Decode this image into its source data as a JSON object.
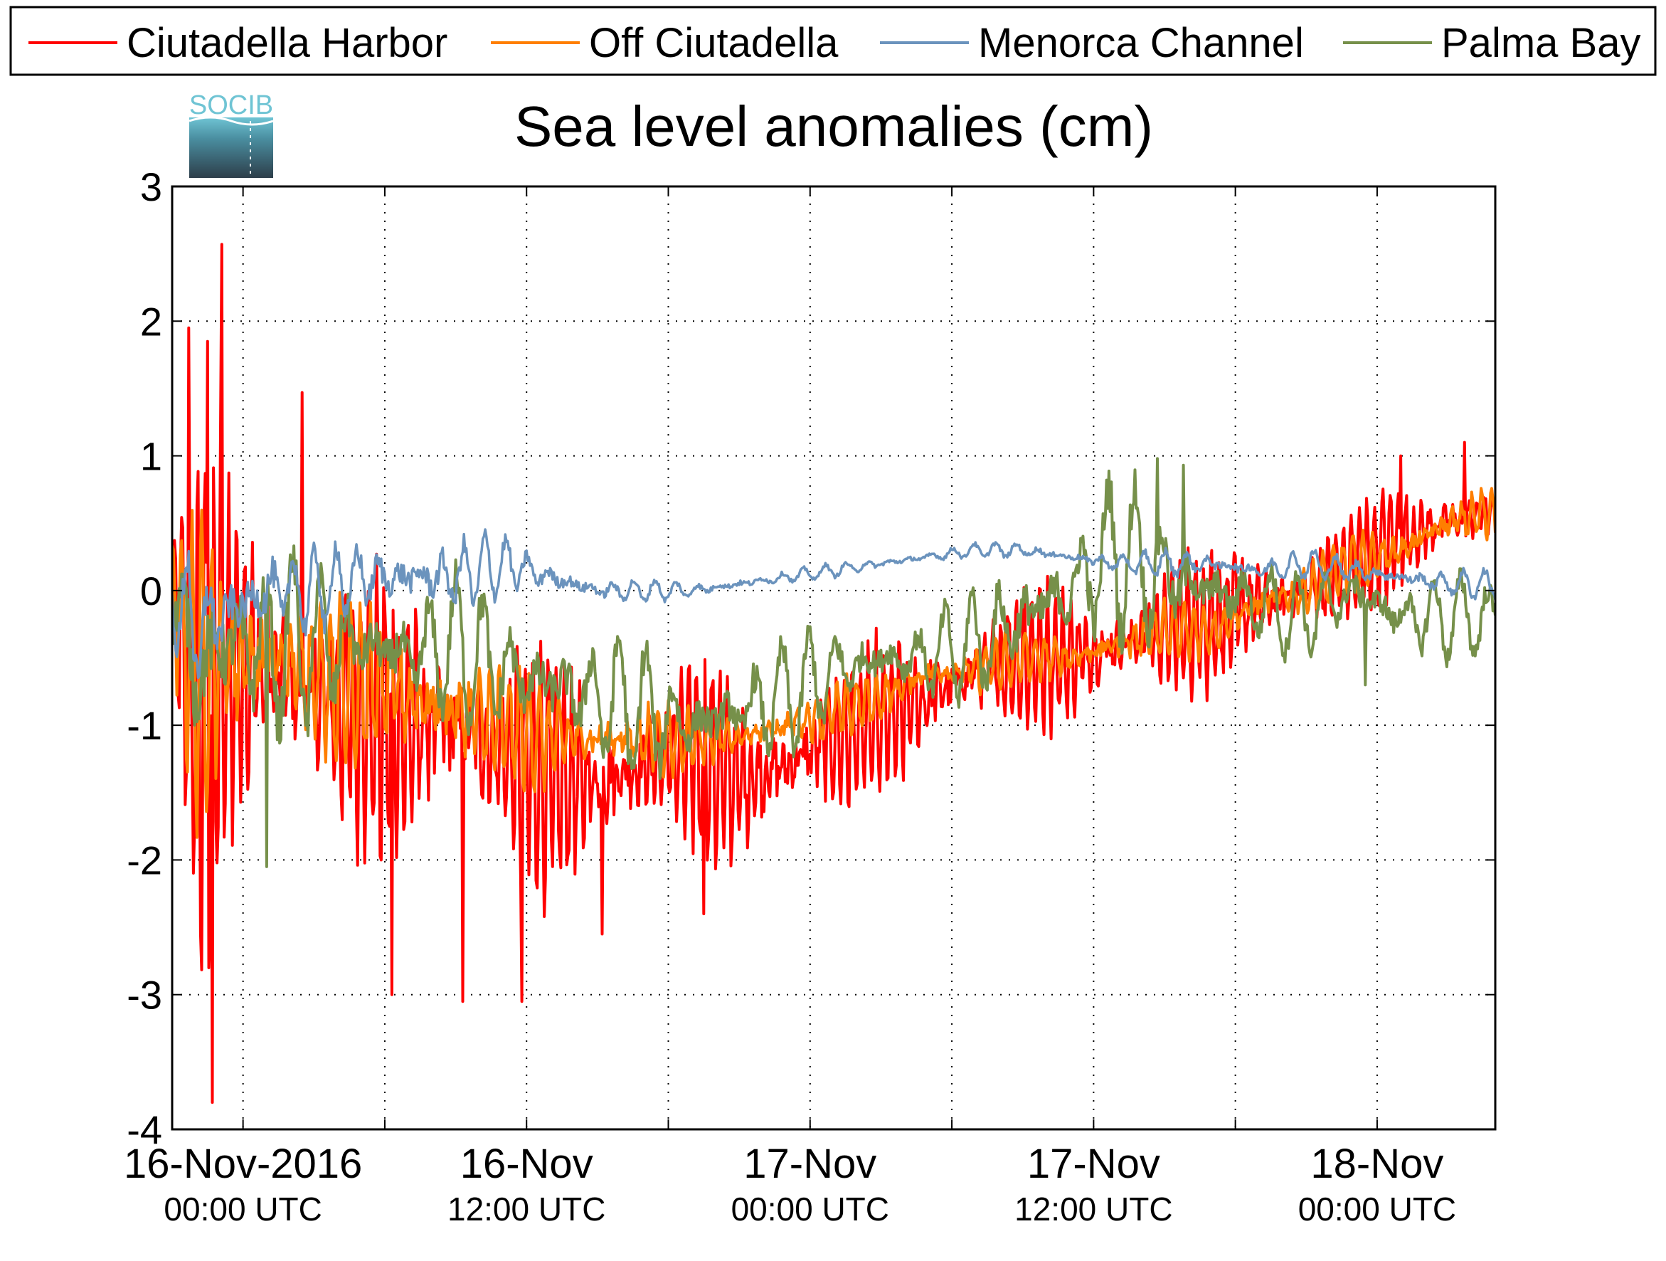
{
  "logo": {
    "text": "SOCIB"
  },
  "colors": {
    "ciutadella_harbor": "#ff0000",
    "off_ciutadella": "#ff7f00",
    "menorca_channel": "#6b93bd",
    "palma_bay": "#76904a",
    "grid": "#000000"
  },
  "chart_data": {
    "type": "line",
    "title": "Sea level anomalies (cm)",
    "xlabel": "",
    "ylabel": "",
    "ylim": [
      -4,
      3
    ],
    "xlim": [
      "2016-11-15 21:00",
      "2016-11-18 05:00"
    ],
    "grid": true,
    "legend_placement": "top",
    "y_ticks": [
      "3",
      "2",
      "1",
      "0",
      "-1",
      "-2",
      "-3",
      "-4"
    ],
    "x_ticks": [
      {
        "label": "16-Nov-2016",
        "sublabel": "00:00 UTC"
      },
      {
        "label": "16-Nov",
        "sublabel": "12:00 UTC"
      },
      {
        "label": "17-Nov",
        "sublabel": "00:00 UTC"
      },
      {
        "label": "17-Nov",
        "sublabel": "12:00 UTC"
      },
      {
        "label": "18-Nov",
        "sublabel": "00:00 UTC"
      }
    ],
    "series": [
      {
        "name": "Ciutadella Harbor",
        "x_hours": [
          0,
          1,
          2,
          3,
          4,
          6,
          8,
          10,
          12,
          14,
          16,
          18,
          20,
          22,
          24,
          26,
          28,
          30,
          32,
          34,
          36,
          38,
          40,
          42,
          44,
          46,
          48,
          50,
          52,
          54,
          56
        ],
        "y": [
          0.0,
          -1.0,
          -0.6,
          -0.5,
          -0.6,
          -0.8,
          -0.9,
          -1.0,
          -1.0,
          -1.2,
          -1.4,
          -1.4,
          -1.3,
          -1.2,
          -1.4,
          -1.3,
          -1.1,
          -1.0,
          -0.8,
          -0.6,
          -0.5,
          -0.5,
          -0.4,
          -0.3,
          -0.2,
          -0.1,
          0.0,
          0.2,
          0.4,
          0.5,
          0.6
        ],
        "amplitude": [
          0.6,
          2.0,
          1.6,
          1.3,
          1.1,
          1.1,
          1.0,
          1.0,
          1.0,
          0.9,
          0.8,
          0.8,
          0.7,
          0.7,
          0.7,
          0.6,
          0.6,
          0.6,
          0.5,
          0.5,
          0.5,
          0.5,
          0.5,
          0.5,
          0.5,
          0.5,
          0.4,
          0.4,
          0.4,
          0.4,
          0.3
        ],
        "extremes": [
          {
            "x_hours": 1.7,
            "y": -3.8
          },
          {
            "x_hours": 2.1,
            "y": 2.57
          },
          {
            "x_hours": 0.7,
            "y": 1.95
          },
          {
            "x_hours": 1.5,
            "y": 1.85
          },
          {
            "x_hours": 5.5,
            "y": 1.47
          },
          {
            "x_hours": 9.3,
            "y": -3.0
          },
          {
            "x_hours": 12.3,
            "y": -3.05
          },
          {
            "x_hours": 14.8,
            "y": -3.05
          },
          {
            "x_hours": 18.2,
            "y": -2.55
          },
          {
            "x_hours": 22.5,
            "y": -2.4
          },
          {
            "x_hours": 52.0,
            "y": 1.0
          },
          {
            "x_hours": 54.7,
            "y": 1.1
          }
        ]
      },
      {
        "name": "Off Ciutadella",
        "x_hours": [
          0,
          1,
          2,
          3,
          4,
          6,
          8,
          10,
          12,
          14,
          16,
          18,
          20,
          22,
          24,
          26,
          28,
          30,
          32,
          34,
          36,
          38,
          40,
          42,
          44,
          46,
          48,
          50,
          52,
          54,
          56
        ],
        "y": [
          0.0,
          -0.6,
          -0.5,
          -0.5,
          -0.5,
          -0.6,
          -0.7,
          -0.8,
          -0.9,
          -1.0,
          -1.1,
          -1.1,
          -1.1,
          -1.1,
          -1.1,
          -1.0,
          -0.9,
          -0.8,
          -0.6,
          -0.6,
          -0.5,
          -0.5,
          -0.4,
          -0.3,
          -0.3,
          -0.1,
          0.0,
          0.2,
          0.3,
          0.5,
          0.6
        ],
        "amplitude": [
          0.5,
          1.0,
          0.9,
          0.8,
          0.7,
          0.6,
          0.6,
          0.6,
          0.5,
          0.4,
          0.4,
          0.3,
          0.3,
          0.2,
          0.2,
          0.2,
          0.2,
          0.2,
          0.2,
          0.2,
          0.2,
          0.2,
          0.2,
          0.2,
          0.2,
          0.2,
          0.2,
          0.2,
          0.2,
          0.2,
          0.2
        ]
      },
      {
        "name": "Menorca Channel",
        "x_hours": [
          0,
          1,
          2,
          3,
          4,
          6,
          8,
          10,
          12,
          14,
          16,
          18,
          20,
          22,
          24,
          26,
          28,
          30,
          32,
          34,
          36,
          38,
          40,
          42,
          44,
          46,
          48,
          50,
          52,
          54,
          56
        ],
        "y": [
          0.0,
          -0.3,
          -0.2,
          -0.1,
          0.0,
          0.0,
          0.1,
          0.1,
          0.1,
          0.2,
          0.1,
          0.0,
          0.0,
          0.0,
          0.05,
          0.1,
          0.15,
          0.2,
          0.25,
          0.3,
          0.3,
          0.25,
          0.2,
          0.2,
          0.2,
          0.15,
          0.2,
          0.15,
          0.1,
          0.05,
          0.05
        ],
        "amplitude": [
          0.3,
          0.7,
          0.5,
          0.4,
          0.4,
          0.3,
          0.3,
          0.3,
          0.3,
          0.2,
          0.15,
          0.1,
          0.08,
          0.06,
          0.06,
          0.05,
          0.05,
          0.05,
          0.05,
          0.05,
          0.06,
          0.06,
          0.08,
          0.1,
          0.1,
          0.1,
          0.1,
          0.1,
          0.1,
          0.1,
          0.1
        ]
      },
      {
        "name": "Palma Bay",
        "x_hours": [
          0,
          1,
          2,
          3,
          4,
          6,
          8,
          10,
          12,
          14,
          16,
          18,
          20,
          22,
          24,
          26,
          28,
          30,
          32,
          34,
          36,
          38,
          40,
          42,
          44,
          46,
          48,
          50,
          52,
          54,
          56
        ],
        "y": [
          0.0,
          -0.6,
          -0.4,
          -0.4,
          -0.4,
          -0.4,
          -0.4,
          -0.5,
          -0.4,
          -0.6,
          -0.7,
          -0.8,
          -0.9,
          -1.0,
          -0.9,
          -0.8,
          -0.6,
          -0.5,
          -0.5,
          -0.4,
          -0.2,
          0.0,
          0.3,
          0.1,
          0.0,
          -0.1,
          -0.2,
          0.0,
          -0.2,
          -0.2,
          -0.2
        ],
        "amplitude": [
          0.5,
          0.9,
          0.8,
          0.7,
          0.7,
          0.6,
          0.5,
          0.5,
          0.5,
          0.5,
          0.5,
          0.5,
          0.5,
          0.4,
          0.4,
          0.4,
          0.4,
          0.3,
          0.3,
          0.4,
          0.5,
          0.5,
          0.6,
          0.5,
          0.4,
          0.3,
          0.3,
          0.3,
          0.3,
          0.3,
          0.3
        ],
        "extremes": [
          {
            "x_hours": 4.0,
            "y": -2.05
          },
          {
            "x_hours": 41.7,
            "y": 0.98
          },
          {
            "x_hours": 42.8,
            "y": 0.93
          },
          {
            "x_hours": 50.5,
            "y": -0.7
          }
        ]
      }
    ]
  }
}
